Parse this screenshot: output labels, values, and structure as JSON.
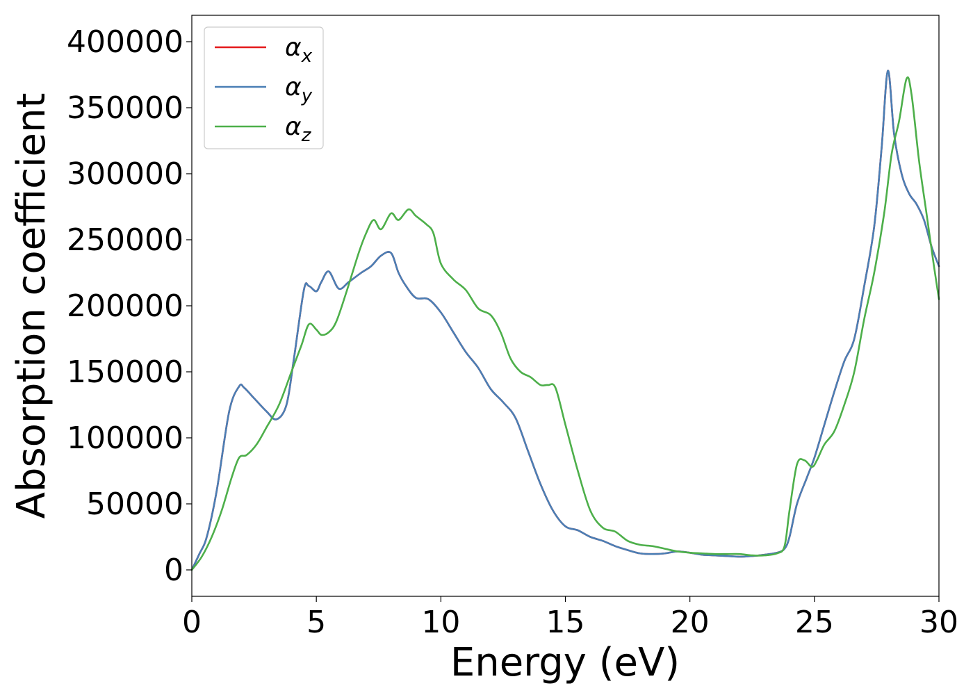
{
  "chart_data": {
    "type": "line",
    "xlabel": "Energy (eV)",
    "ylabel": "Absorption coefficient",
    "xlim": [
      0,
      30
    ],
    "ylim": [
      -20000,
      420000
    ],
    "xticks": [
      0,
      5,
      10,
      15,
      20,
      25,
      30
    ],
    "xtick_labels": [
      "0",
      "5",
      "10",
      "15",
      "20",
      "25",
      "30"
    ],
    "yticks": [
      0,
      50000,
      100000,
      150000,
      200000,
      250000,
      300000,
      350000,
      400000
    ],
    "ytick_labels": [
      "0",
      "50000",
      "100000",
      "150000",
      "200000",
      "250000",
      "300000",
      "350000",
      "400000"
    ],
    "grid": false,
    "legend_position": "top-left",
    "series": [
      {
        "name": "αx",
        "symbol": "α",
        "sub": "x",
        "color": "#e41a1c",
        "x": [
          0,
          0.3,
          0.6,
          1.0,
          1.5,
          1.9,
          2.1,
          2.5,
          3.0,
          3.4,
          3.8,
          4.1,
          4.5,
          4.7,
          5.0,
          5.2,
          5.5,
          5.9,
          6.3,
          6.8,
          7.2,
          7.6,
          8.0,
          8.3,
          8.6,
          9.0,
          9.5,
          10.0,
          10.5,
          11.0,
          11.5,
          12.0,
          12.5,
          13.0,
          13.5,
          14.0,
          14.5,
          15.0,
          15.5,
          16.0,
          16.5,
          17.0,
          17.5,
          18.0,
          18.5,
          19.0,
          19.5,
          20.0,
          20.5,
          21.0,
          21.5,
          22.0,
          22.5,
          23.0,
          23.5,
          23.8,
          24.0,
          24.3,
          24.7,
          25.0,
          25.4,
          25.8,
          26.2,
          26.6,
          27.0,
          27.4,
          27.7,
          27.95,
          28.2,
          28.5,
          28.8,
          29.1,
          29.4,
          29.7,
          30.0
        ],
        "y": [
          0,
          12000,
          25000,
          60000,
          120000,
          139000,
          138000,
          130000,
          120000,
          114000,
          125000,
          160000,
          212000,
          215000,
          211000,
          218000,
          226000,
          213000,
          218000,
          225000,
          230000,
          238000,
          240000,
          225000,
          215000,
          206000,
          205000,
          195000,
          180000,
          165000,
          153000,
          137000,
          127000,
          115000,
          90000,
          65000,
          45000,
          33000,
          30000,
          25000,
          22000,
          18000,
          15000,
          12500,
          12000,
          12500,
          14000,
          13000,
          11500,
          11000,
          10500,
          10000,
          10500,
          11500,
          13000,
          16000,
          25000,
          50000,
          70000,
          85000,
          110000,
          135000,
          158000,
          175000,
          215000,
          260000,
          320000,
          378000,
          330000,
          300000,
          285000,
          277000,
          265000,
          245000,
          230000
        ]
      },
      {
        "name": "αy",
        "symbol": "α",
        "sub": "y",
        "color": "#4a7fb5",
        "x": [
          0,
          0.3,
          0.6,
          1.0,
          1.5,
          1.9,
          2.1,
          2.5,
          3.0,
          3.4,
          3.8,
          4.1,
          4.5,
          4.7,
          5.0,
          5.2,
          5.5,
          5.9,
          6.3,
          6.8,
          7.2,
          7.6,
          8.0,
          8.3,
          8.6,
          9.0,
          9.5,
          10.0,
          10.5,
          11.0,
          11.5,
          12.0,
          12.5,
          13.0,
          13.5,
          14.0,
          14.5,
          15.0,
          15.5,
          16.0,
          16.5,
          17.0,
          17.5,
          18.0,
          18.5,
          19.0,
          19.5,
          20.0,
          20.5,
          21.0,
          21.5,
          22.0,
          22.5,
          23.0,
          23.5,
          23.8,
          24.0,
          24.3,
          24.7,
          25.0,
          25.4,
          25.8,
          26.2,
          26.6,
          27.0,
          27.4,
          27.7,
          27.95,
          28.2,
          28.5,
          28.8,
          29.1,
          29.4,
          29.7,
          30.0
        ],
        "y": [
          0,
          12000,
          25000,
          60000,
          120000,
          139000,
          138000,
          130000,
          120000,
          114000,
          125000,
          160000,
          212000,
          215000,
          211000,
          218000,
          226000,
          213000,
          218000,
          225000,
          230000,
          238000,
          240000,
          225000,
          215000,
          206000,
          205000,
          195000,
          180000,
          165000,
          153000,
          137000,
          127000,
          115000,
          90000,
          65000,
          45000,
          33000,
          30000,
          25000,
          22000,
          18000,
          15000,
          12500,
          12000,
          12500,
          14000,
          13000,
          11500,
          11000,
          10500,
          10000,
          10500,
          11500,
          13000,
          16000,
          25000,
          50000,
          70000,
          85000,
          110000,
          135000,
          158000,
          175000,
          215000,
          260000,
          320000,
          378000,
          330000,
          300000,
          285000,
          277000,
          265000,
          245000,
          230000
        ]
      },
      {
        "name": "αz",
        "symbol": "α",
        "sub": "z",
        "color": "#4daf4a",
        "x": [
          0,
          0.4,
          0.8,
          1.2,
          1.6,
          1.9,
          2.2,
          2.6,
          3.0,
          3.5,
          4.0,
          4.4,
          4.7,
          5.0,
          5.2,
          5.5,
          5.8,
          6.2,
          6.7,
          7.0,
          7.3,
          7.6,
          8.0,
          8.3,
          8.7,
          9.0,
          9.4,
          9.7,
          10.0,
          10.5,
          11.0,
          11.5,
          12.0,
          12.4,
          12.8,
          13.2,
          13.6,
          14.0,
          14.3,
          14.6,
          15.0,
          15.5,
          16.0,
          16.5,
          17.0,
          17.5,
          18.0,
          18.5,
          19.0,
          19.5,
          20.0,
          20.5,
          21.0,
          21.5,
          22.0,
          22.5,
          23.0,
          23.5,
          23.8,
          24.0,
          24.3,
          24.6,
          24.9,
          25.1,
          25.4,
          25.8,
          26.2,
          26.6,
          27.0,
          27.4,
          27.8,
          28.1,
          28.4,
          28.7,
          28.9,
          29.2,
          29.5,
          29.8,
          30.0
        ],
        "y": [
          0,
          10000,
          25000,
          45000,
          70000,
          85000,
          87000,
          95000,
          108000,
          125000,
          150000,
          170000,
          186000,
          182000,
          178000,
          180000,
          188000,
          210000,
          240000,
          255000,
          265000,
          258000,
          270000,
          265000,
          273000,
          268000,
          262000,
          255000,
          232000,
          220000,
          212000,
          198000,
          193000,
          180000,
          160000,
          150000,
          146000,
          140000,
          140000,
          138000,
          110000,
          75000,
          45000,
          32000,
          29000,
          22000,
          19000,
          18000,
          16000,
          14000,
          13000,
          12500,
          12000,
          12000,
          12000,
          11000,
          11000,
          12500,
          18000,
          45000,
          80000,
          83000,
          78000,
          83000,
          95000,
          105000,
          125000,
          150000,
          190000,
          225000,
          270000,
          315000,
          340000,
          372000,
          360000,
          310000,
          270000,
          230000,
          205000
        ]
      }
    ]
  }
}
